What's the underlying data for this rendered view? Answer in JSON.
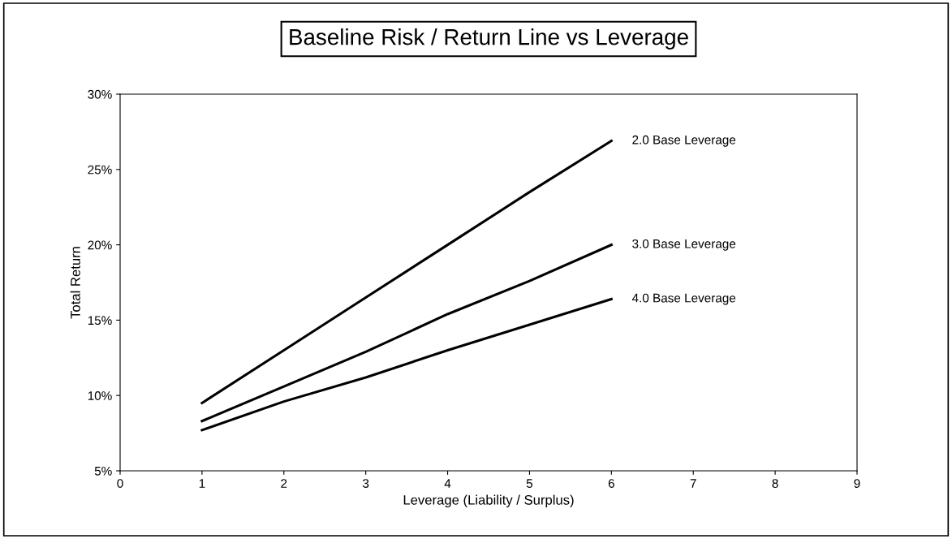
{
  "chart_data": {
    "type": "line",
    "title": "Baseline Risk / Return Line vs Leverage",
    "xlabel": "Leverage (Liability / Surplus)",
    "ylabel": "Total Return",
    "x": [
      1,
      2,
      3,
      4,
      5,
      6
    ],
    "series": [
      {
        "name": "2.0 Base Leverage",
        "color": "#000000",
        "values": [
          9.5,
          13.0,
          16.5,
          20.0,
          23.5,
          26.9
        ]
      },
      {
        "name": "3.0 Base Leverage",
        "color": "#000000",
        "values": [
          8.3,
          10.6,
          12.9,
          15.4,
          17.6,
          20.0
        ]
      },
      {
        "name": "4.0 Base Leverage",
        "color": "#000000",
        "values": [
          7.7,
          9.6,
          11.2,
          13.0,
          14.7,
          16.4
        ]
      }
    ],
    "xlim": [
      0,
      9
    ],
    "xticks": [
      0,
      1,
      2,
      3,
      4,
      5,
      6,
      7,
      8,
      9
    ],
    "ylim": [
      5,
      30
    ],
    "yticks": [
      {
        "value": 5,
        "label": "5%"
      },
      {
        "value": 10,
        "label": "10%"
      },
      {
        "value": 15,
        "label": "15%"
      },
      {
        "value": 20,
        "label": "20%"
      },
      {
        "value": 25,
        "label": "25%"
      },
      {
        "value": 30,
        "label": "30%"
      }
    ],
    "grid": false,
    "legend": false,
    "marker": "none",
    "line_style": "solid"
  }
}
